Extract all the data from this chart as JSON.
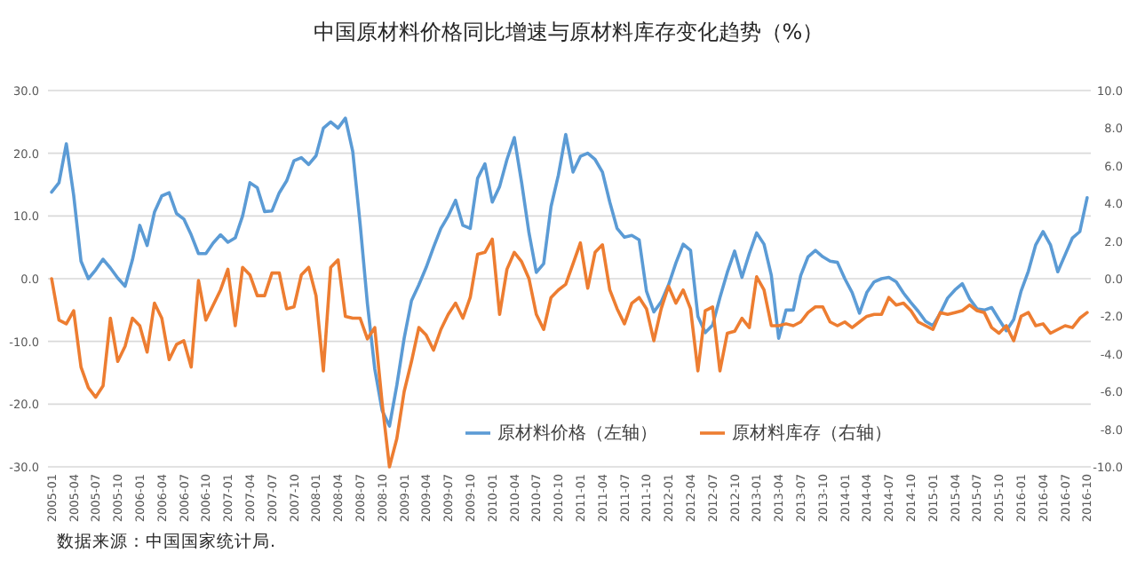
{
  "chart_data": {
    "type": "line",
    "title": "中国原材料价格同比增速与原材料库存变化趋势（%）",
    "categories": [
      "2005-01",
      null,
      null,
      "2005-04",
      null,
      null,
      "2005-07",
      null,
      null,
      "2005-10",
      null,
      null,
      "2006-01",
      null,
      null,
      "2006-04",
      null,
      null,
      "2006-07",
      null,
      null,
      "2006-10",
      null,
      null,
      "2007-01",
      null,
      null,
      "2007-04",
      null,
      null,
      "2007-07",
      null,
      null,
      "2007-10",
      null,
      null,
      "2008-01",
      null,
      null,
      "2008-04",
      null,
      null,
      "2008-07",
      null,
      null,
      "2008-10",
      null,
      null,
      "2009-01",
      null,
      null,
      "2009-04",
      null,
      null,
      "2009-07",
      null,
      null,
      "2009-10",
      null,
      null,
      "2010-01",
      null,
      null,
      "2010-04",
      null,
      null,
      "2010-07",
      null,
      null,
      "2010-10",
      null,
      null,
      "2011-01",
      null,
      null,
      "2011-04",
      null,
      null,
      "2011-07",
      null,
      null,
      "2011-10",
      null,
      null,
      "2012-01",
      null,
      null,
      "2012-04",
      null,
      null,
      "2012-07",
      null,
      null,
      "2012-10",
      null,
      null,
      "2013-01",
      null,
      null,
      "2013-04",
      null,
      null,
      "2013-07",
      null,
      null,
      "2013-10",
      null,
      null,
      "2014-01",
      null,
      null,
      "2014-04",
      null,
      null,
      "2014-07",
      null,
      null,
      "2014-10",
      null,
      null,
      "2015-01",
      null,
      null,
      "2015-04",
      null,
      null,
      "2015-07",
      null,
      null,
      "2015-10",
      null,
      null,
      "2016-01",
      null,
      null,
      "2016-04",
      null,
      null,
      "2016-07",
      null,
      null,
      "2016-10"
    ],
    "series": [
      {
        "name": "原材料价格（左轴）",
        "color": "#5b9bd5",
        "values": [
          13.8,
          15.3,
          21.5,
          13.3,
          2.8,
          0,
          1.4,
          3.1,
          1.7,
          0.1,
          -1.2,
          3,
          8.5,
          5.3,
          10.6,
          13.2,
          13.7,
          10.4,
          9.5,
          7,
          4,
          4,
          5.7,
          7,
          5.8,
          6.5,
          10,
          15.3,
          14.5,
          10.7,
          10.8,
          13.7,
          15.6,
          18.8,
          19.3,
          18.2,
          19.6,
          24,
          25,
          24,
          25.6,
          20.3,
          8.8,
          -4,
          -14.4,
          -21,
          -23.5,
          -17,
          -9.5,
          -3.5,
          -1,
          1.8,
          5,
          8,
          10,
          12.5,
          8.5,
          8,
          16,
          18.3,
          12.2,
          14.7,
          19,
          22.5,
          15.3,
          7.3,
          1,
          2.4,
          11.5,
          16.5,
          23,
          17,
          19.5,
          20,
          19,
          17,
          12.2,
          8,
          6.6,
          6.9,
          6.2,
          -2,
          -5.3,
          -3.7,
          -1,
          2.5,
          5.5,
          4.5,
          -6,
          -8.6,
          -7.4,
          -3,
          1,
          4.4,
          0.2,
          4,
          7.3,
          5.5,
          0.5,
          -9.5,
          -5,
          -5,
          0.5,
          3.5,
          4.5,
          3.5,
          2.8,
          2.6,
          0,
          -2.2,
          -5.5,
          -2.2,
          -0.5,
          0,
          0.2,
          -0.5,
          -2.3,
          -3.8,
          -5.2,
          -6.8,
          -7.5,
          -5.5,
          -3.1,
          -1.8,
          -0.8,
          -3.2,
          -4.8,
          -5,
          -4.6,
          -6.5,
          -8.3,
          -6.5,
          -2,
          1.2,
          5.4,
          7.5,
          5.4,
          1.1,
          3.8,
          6.5,
          7.5,
          12.9
        ]
      },
      {
        "name": "原材料库存（右轴）",
        "color": "#ed7d31",
        "axis": "y2",
        "values": [
          0,
          -2.2,
          -2.4,
          -1.7,
          -4.7,
          -5.8,
          -6.3,
          -5.7,
          -2.1,
          -4.4,
          -3.6,
          -2.1,
          -2.5,
          -3.9,
          -1.3,
          -2.1,
          -4.3,
          -3.5,
          -3.3,
          -4.7,
          -0.1,
          -2.2,
          -1.4,
          -0.6,
          0.5,
          -2.5,
          0.6,
          0.2,
          -0.9,
          -0.9,
          0.3,
          0.3,
          -1.6,
          -1.5,
          0.2,
          0.6,
          -0.9,
          -4.9,
          0.6,
          1.0,
          -2,
          -2.1,
          -2.1,
          -3.2,
          -2.6,
          -6.6,
          -10,
          -8.5,
          -6,
          -4.4,
          -2.6,
          -3,
          -3.8,
          -2.7,
          -1.9,
          -1.3,
          -2.1,
          -1,
          1.3,
          1.4,
          2.1,
          -1.9,
          0.5,
          1.4,
          0.9,
          0,
          -1.9,
          -2.7,
          -1,
          -0.6,
          -0.3,
          0.8,
          1.9,
          -0.5,
          1.4,
          1.8,
          -0.6,
          -1.6,
          -2.4,
          -1.3,
          -1,
          -1.6,
          -3.3,
          -1.6,
          -0.4,
          -1.3,
          -0.6,
          -1.6,
          -4.9,
          -1.7,
          -1.5,
          -4.9,
          -2.9,
          -2.8,
          -2.1,
          -2.6,
          0.1,
          -0.6,
          -2.5,
          -2.5,
          -2.4,
          -2.5,
          -2.3,
          -1.8,
          -1.5,
          -1.5,
          -2.3,
          -2.5,
          -2.3,
          -2.6,
          -2.3,
          -2.0,
          -1.9,
          -1.9,
          -1.0,
          -1.4,
          -1.3,
          -1.7,
          -2.3,
          -2.5,
          -2.7,
          -1.8,
          -1.9,
          -1.8,
          -1.7,
          -1.4,
          -1.7,
          -1.8,
          -2.6,
          -2.9,
          -2.5,
          -3.3,
          -2.0,
          -1.8,
          -2.5,
          -2.4,
          -2.9,
          -2.7,
          -2.5,
          -2.6,
          -2.1,
          -1.8
        ]
      }
    ],
    "ylim": [
      -30,
      30
    ],
    "yticks": [
      {
        "value": -30,
        "label": "-30.0"
      },
      {
        "value": -20,
        "label": "-20.0"
      },
      {
        "value": -10,
        "label": "-10.0"
      },
      {
        "value": 0,
        "label": "0.0"
      },
      {
        "value": 10,
        "label": "10.0"
      },
      {
        "value": 20,
        "label": "20.0"
      },
      {
        "value": 30,
        "label": "30.0"
      }
    ],
    "y2lim": [
      -10,
      10
    ],
    "y2ticks": [
      {
        "value": -10,
        "label": "-10.0"
      },
      {
        "value": -8,
        "label": "-8.0"
      },
      {
        "value": -6,
        "label": "-6.0"
      },
      {
        "value": -4,
        "label": "-4.0"
      },
      {
        "value": -2,
        "label": "-2.0"
      },
      {
        "value": 0,
        "label": "0.0"
      },
      {
        "value": 2,
        "label": "2.0"
      },
      {
        "value": 4,
        "label": "4.0"
      },
      {
        "value": 6,
        "label": "6.0"
      },
      {
        "value": 8,
        "label": "8.0"
      },
      {
        "value": 10,
        "label": "10.0"
      }
    ],
    "grid": "y",
    "legend": "bottom",
    "line_style": "solid",
    "annotations": [
      "数据来源：中国国家统计局."
    ]
  }
}
